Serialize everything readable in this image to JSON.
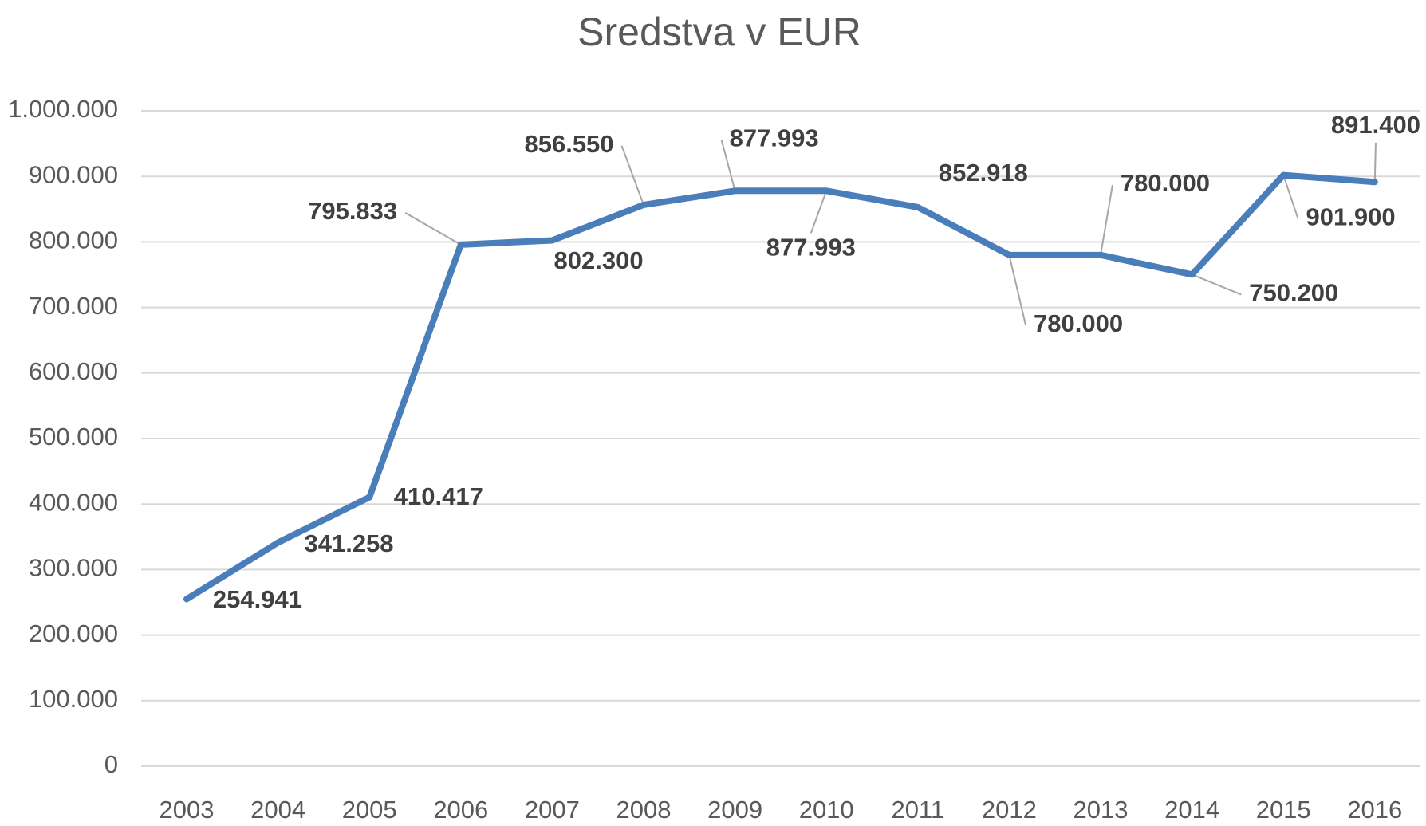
{
  "chart_data": {
    "type": "line",
    "title": "Sredstva v EUR",
    "categories": [
      "2003",
      "2004",
      "2005",
      "2006",
      "2007",
      "2008",
      "2009",
      "2010",
      "2011",
      "2012",
      "2013",
      "2014",
      "2015",
      "2016"
    ],
    "series": [
      {
        "name": "Sredstva v EUR",
        "color": "#4a7ebb",
        "values": [
          254941,
          341258,
          410417,
          795833,
          802300,
          856550,
          877993,
          877993,
          852918,
          780000,
          780000,
          750200,
          901900,
          891400
        ],
        "value_labels": [
          "254.941",
          "341.258",
          "410.417",
          "795.833",
          "802.300",
          "856.550",
          "877.993",
          "877.993",
          "852.918",
          "780.000",
          "780.000",
          "750.200",
          "901.900",
          "891.400"
        ]
      }
    ],
    "ylim": [
      0,
      1000000
    ],
    "yticks": [
      0,
      {
        "value": 100000,
        "label": "100.000"
      },
      {
        "value": 200000,
        "label": "200.000"
      },
      {
        "value": 300000,
        "label": "300.000"
      },
      {
        "value": 400000,
        "label": "400.000"
      },
      {
        "value": 500000,
        "label": "500.000"
      },
      {
        "value": 600000,
        "label": "600.000"
      },
      {
        "value": 700000,
        "label": "700.000"
      },
      {
        "value": 800000,
        "label": "800.000"
      },
      {
        "value": 900000,
        "label": "900.000"
      },
      {
        "value": 1000000,
        "label": "1.000.000"
      }
    ],
    "grid": true
  }
}
